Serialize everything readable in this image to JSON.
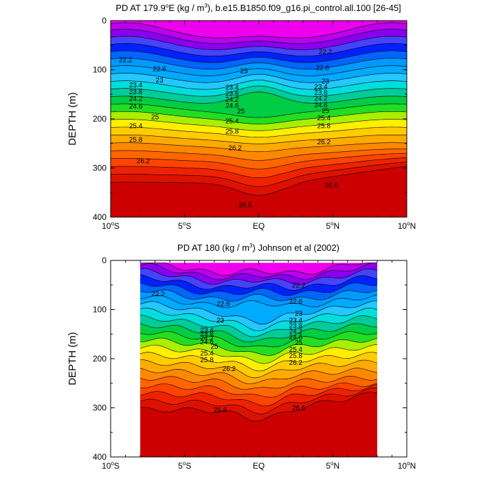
{
  "chart_data": [
    {
      "type": "contour",
      "title": "PD AT 179.9°E (kg / m³), b.e15.B1850.f09_g16.pi_control.all.100 [26-45]",
      "title_parts": {
        "a": "PD AT 179.9",
        "deg": "o",
        "b": "E (kg / m",
        "sup": "3",
        "c": "), b.e15.B1850.f09_g16.pi_control.all.100 [26-45]"
      },
      "ylabel": "DEPTH (m)",
      "xlim": [
        -10,
        10
      ],
      "ylim": [
        400,
        0
      ],
      "xticks": [
        {
          "v": -10,
          "main": "10",
          "deg": "o",
          "suf": "S"
        },
        {
          "v": -5,
          "main": "5",
          "deg": "o",
          "suf": "S"
        },
        {
          "v": 0,
          "main": "EQ",
          "deg": "",
          "suf": ""
        },
        {
          "v": 5,
          "main": "5",
          "deg": "o",
          "suf": "N"
        },
        {
          "v": 10,
          "main": "10",
          "deg": "o",
          "suf": "N"
        }
      ],
      "yticks": [
        "0",
        "100",
        "200",
        "300",
        "400"
      ],
      "data_xrange": [
        -10,
        10
      ],
      "data_top": 0,
      "contour_labels": [
        {
          "text": "22.2",
          "x": -9.0,
          "y": 80
        },
        {
          "text": "22.6",
          "x": -6.7,
          "y": 98
        },
        {
          "text": "23",
          "x": -6.7,
          "y": 121
        },
        {
          "text": "23.4",
          "x": -8.3,
          "y": 131
        },
        {
          "text": "23.8",
          "x": -8.3,
          "y": 145
        },
        {
          "text": "24.2",
          "x": -8.3,
          "y": 159
        },
        {
          "text": "24.6",
          "x": -8.3,
          "y": 174
        },
        {
          "text": "25",
          "x": -7.0,
          "y": 196
        },
        {
          "text": "25.4",
          "x": -8.3,
          "y": 214
        },
        {
          "text": "25.8",
          "x": -8.3,
          "y": 242
        },
        {
          "text": "26.2",
          "x": -7.8,
          "y": 285
        },
        {
          "text": "26.6",
          "x": -0.9,
          "y": 375
        },
        {
          "text": "23",
          "x": -1.0,
          "y": 102
        },
        {
          "text": "23.4",
          "x": -1.8,
          "y": 136
        },
        {
          "text": "23.8",
          "x": -1.8,
          "y": 148
        },
        {
          "text": "24.2",
          "x": -1.8,
          "y": 160
        },
        {
          "text": "24.6",
          "x": -1.8,
          "y": 173
        },
        {
          "text": "25",
          "x": -1.2,
          "y": 184
        },
        {
          "text": "25.4",
          "x": -1.8,
          "y": 204
        },
        {
          "text": "25.8",
          "x": -1.8,
          "y": 225
        },
        {
          "text": "26.2",
          "x": -1.6,
          "y": 259
        },
        {
          "text": "22.2",
          "x": 4.5,
          "y": 63
        },
        {
          "text": "22.6",
          "x": 4.3,
          "y": 96
        },
        {
          "text": "23",
          "x": 4.5,
          "y": 123
        },
        {
          "text": "23.4",
          "x": 4.2,
          "y": 134
        },
        {
          "text": "23.8",
          "x": 4.2,
          "y": 146
        },
        {
          "text": "24.2",
          "x": 4.2,
          "y": 158
        },
        {
          "text": "24.6",
          "x": 4.2,
          "y": 171
        },
        {
          "text": "25",
          "x": 4.5,
          "y": 183
        },
        {
          "text": "25.4",
          "x": 4.4,
          "y": 198
        },
        {
          "text": "25.8",
          "x": 4.4,
          "y": 214
        },
        {
          "text": "26.2",
          "x": 4.4,
          "y": 247
        },
        {
          "text": "26.6",
          "x": 4.9,
          "y": 335
        }
      ]
    },
    {
      "type": "contour",
      "title": "PD AT 180 (kg / m³) Johnson et al (2002)",
      "title_parts": {
        "a": "PD AT 180 (kg / m",
        "deg": "",
        "b": "",
        "sup": "3",
        "c": ") Johnson et al (2002)"
      },
      "ylabel": "DEPTH (m)",
      "xlim": [
        -10,
        10
      ],
      "ylim": [
        400,
        0
      ],
      "xticks": [
        {
          "v": -10,
          "main": "10",
          "deg": "o",
          "suf": "S"
        },
        {
          "v": -5,
          "main": "5",
          "deg": "o",
          "suf": "S"
        },
        {
          "v": 0,
          "main": "EQ",
          "deg": "",
          "suf": ""
        },
        {
          "v": 5,
          "main": "5",
          "deg": "o",
          "suf": "N"
        },
        {
          "v": 10,
          "main": "10",
          "deg": "o",
          "suf": "N"
        }
      ],
      "yticks": [
        "0",
        "100",
        "200",
        "300",
        "400"
      ],
      "data_xrange": [
        -8,
        8
      ],
      "data_top": 5,
      "contour_labels": [
        {
          "text": "22.2",
          "x": -6.8,
          "y": 68
        },
        {
          "text": "22.6",
          "x": -2.4,
          "y": 88
        },
        {
          "text": "23",
          "x": -2.6,
          "y": 122
        },
        {
          "text": "23.4",
          "x": -3.5,
          "y": 141
        },
        {
          "text": "23.8",
          "x": -3.5,
          "y": 149
        },
        {
          "text": "24.2",
          "x": -3.5,
          "y": 158
        },
        {
          "text": "24.6",
          "x": -3.5,
          "y": 166
        },
        {
          "text": "25",
          "x": -3.0,
          "y": 175
        },
        {
          "text": "25.4",
          "x": -3.5,
          "y": 189
        },
        {
          "text": "25.8",
          "x": -3.5,
          "y": 202
        },
        {
          "text": "26.2",
          "x": -2.0,
          "y": 220
        },
        {
          "text": "26.6",
          "x": -2.6,
          "y": 304
        },
        {
          "text": "22.2",
          "x": 2.7,
          "y": 50
        },
        {
          "text": "22.6",
          "x": 2.5,
          "y": 83
        },
        {
          "text": "23",
          "x": 2.7,
          "y": 108
        },
        {
          "text": "23.4",
          "x": 2.5,
          "y": 122
        },
        {
          "text": "23.8",
          "x": 2.5,
          "y": 133
        },
        {
          "text": "24.2",
          "x": 2.5,
          "y": 144
        },
        {
          "text": "24.6",
          "x": 2.5,
          "y": 156
        },
        {
          "text": "25",
          "x": 2.7,
          "y": 167
        },
        {
          "text": "25.4",
          "x": 2.5,
          "y": 181
        },
        {
          "text": "25.8",
          "x": 2.5,
          "y": 194
        },
        {
          "text": "26.2",
          "x": 2.5,
          "y": 208
        },
        {
          "text": "26.6",
          "x": 2.7,
          "y": 300
        }
      ]
    }
  ],
  "colors": {
    "levels": [
      "#ee00ee",
      "#bb00ee",
      "#8800ee",
      "#4444ff",
      "#0022ff",
      "#0066ff",
      "#0099ff",
      "#00aaff",
      "#22c8ff",
      "#00dddd",
      "#00cc99",
      "#00cc44",
      "#22dd22",
      "#aaee00",
      "#ffee00",
      "#ffcc00",
      "#ffaa00",
      "#ff8800",
      "#ff6600",
      "#ff4400",
      "#ee2200",
      "#dd1100",
      "#cc0000"
    ]
  }
}
